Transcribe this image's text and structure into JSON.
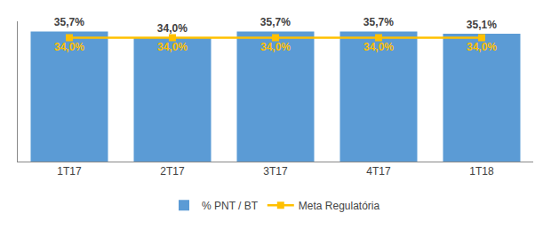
{
  "chart_data": {
    "type": "bar",
    "categories": [
      "1T17",
      "2T17",
      "3T17",
      "4T17",
      "1T18"
    ],
    "series": [
      {
        "name": "% PNT / BT",
        "type": "bar",
        "color": "#5B9BD5",
        "values": [
          35.7,
          34.0,
          35.7,
          35.7,
          35.1
        ],
        "value_labels": [
          "35,7%",
          "34,0%",
          "35,7%",
          "35,7%",
          "35,1%"
        ]
      },
      {
        "name": "Meta Regulatória",
        "type": "line",
        "color": "#FFC000",
        "marker": "square",
        "values": [
          34.0,
          34.0,
          34.0,
          34.0,
          34.0
        ],
        "value_labels": [
          "34,0%",
          "34,0%",
          "34,0%",
          "34,0%",
          "34,0%"
        ]
      }
    ],
    "ylim": [
      0,
      38.5
    ],
    "tick_labels": "x",
    "grid": false,
    "legend": "bottom",
    "data_labels": true
  }
}
